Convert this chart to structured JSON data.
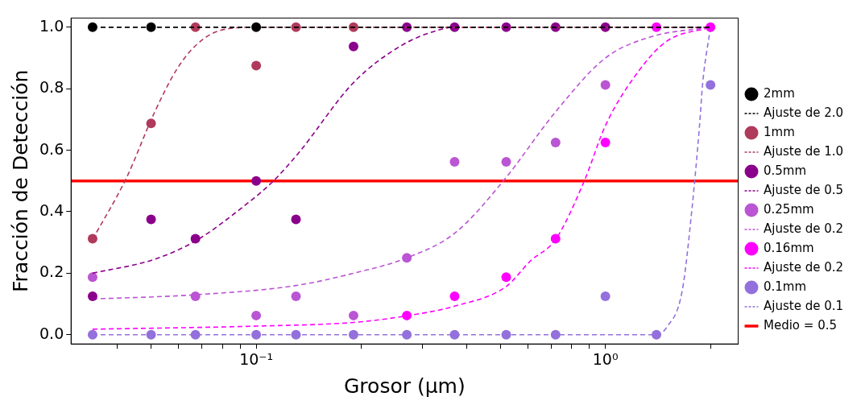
{
  "chart_data": {
    "type": "scatter",
    "xlabel": "Grosor (µm)",
    "ylabel": "Fracción de Detección",
    "log": "x",
    "grid": false,
    "legend": "right",
    "xlim": [
      0.0295,
      2.4
    ],
    "xticks": [
      {
        "value": 0.04,
        "label": null
      },
      {
        "value": 0.05,
        "label": null
      },
      {
        "value": 0.06,
        "label": null
      },
      {
        "value": 0.07,
        "label": null
      },
      {
        "value": 0.08,
        "label": null
      },
      {
        "value": 0.09,
        "label": null
      },
      {
        "value": 0.1,
        "label": "10⁻¹"
      },
      {
        "value": 0.2,
        "label": null
      },
      {
        "value": 0.3,
        "label": null
      },
      {
        "value": 0.4,
        "label": null
      },
      {
        "value": 0.5,
        "label": null
      },
      {
        "value": 0.6,
        "label": null
      },
      {
        "value": 0.7,
        "label": null
      },
      {
        "value": 0.8,
        "label": null
      },
      {
        "value": 0.9,
        "label": null
      },
      {
        "value": 1,
        "label": "10⁰"
      },
      {
        "value": 2,
        "label": null
      }
    ],
    "ylim": [
      -0.03,
      1.03
    ],
    "yticks": [
      {
        "value": 0,
        "label": "0.0"
      },
      {
        "value": 0.2,
        "label": "0.2"
      },
      {
        "value": 0.4,
        "label": "0.4"
      },
      {
        "value": 0.6,
        "label": "0.6"
      },
      {
        "value": 0.8,
        "label": "0.8"
      },
      {
        "value": 1,
        "label": "1.0"
      }
    ],
    "x": [
      0.034,
      0.05,
      0.067,
      0.1,
      0.13,
      0.19,
      0.27,
      0.37,
      0.52,
      0.72,
      1.0,
      1.4,
      2.0
    ],
    "series": [
      {
        "name": "2mm",
        "type": "scatter",
        "marker": "circle",
        "color": "#000000",
        "values": [
          1,
          1,
          null,
          1,
          null,
          null,
          null,
          null,
          null,
          null,
          null,
          null,
          null
        ]
      },
      {
        "name": "Ajuste de 2.0",
        "type": "line",
        "line_style": "dashed",
        "color": "#000000",
        "x": [
          0.034,
          2.0
        ],
        "values": [
          1,
          1
        ]
      },
      {
        "name": "1mm",
        "type": "scatter",
        "marker": "circle",
        "color": "#b03a5b",
        "values": [
          0.3125,
          0.6875,
          1,
          0.875,
          1,
          1,
          null,
          null,
          null,
          null,
          null,
          null,
          null
        ]
      },
      {
        "name": "Ajuste de 1.0",
        "type": "line",
        "line_style": "dashed",
        "color": "#b03a5b",
        "x": [
          0.034,
          0.0425,
          0.051,
          0.059,
          0.067,
          0.079,
          0.1,
          2.0
        ],
        "values": [
          0.31,
          0.51,
          0.72,
          0.86,
          0.94,
          0.99,
          1,
          1
        ]
      },
      {
        "name": "0.5mm",
        "type": "scatter",
        "marker": "circle",
        "color": "#8b008b",
        "values": [
          0.125,
          0.375,
          0.3125,
          0.5,
          0.375,
          0.9375,
          1,
          1,
          1,
          1,
          1,
          null,
          null
        ]
      },
      {
        "name": "Ajuste de 0.5",
        "type": "line",
        "line_style": "dashed",
        "color": "#8b008b",
        "x": [
          0.034,
          0.051,
          0.067,
          0.095,
          0.112,
          0.132,
          0.19,
          0.26,
          0.33,
          0.37,
          2.0
        ],
        "values": [
          0.2,
          0.245,
          0.305,
          0.43,
          0.5,
          0.59,
          0.82,
          0.94,
          0.99,
          1,
          1
        ]
      },
      {
        "name": "0.25mm",
        "type": "scatter",
        "marker": "circle",
        "color": "#ba55d3",
        "values": [
          0.1875,
          null,
          0.125,
          0.0625,
          0.125,
          0.0625,
          0.25,
          0.5625,
          0.5625,
          0.625,
          0.8125,
          null,
          null
        ]
      },
      {
        "name": "Ajuste de 0.2",
        "type": "line",
        "line_style": "dashed",
        "color": "#ba55d3",
        "x": [
          0.034,
          0.067,
          0.13,
          0.19,
          0.27,
          0.37,
          0.51,
          0.72,
          1.0,
          1.36,
          2.0
        ],
        "values": [
          0.116,
          0.13,
          0.16,
          0.2,
          0.25,
          0.33,
          0.5,
          0.725,
          0.9,
          0.97,
          1
        ]
      },
      {
        "name": "0.16mm",
        "type": "scatter",
        "marker": "circle",
        "color": "#ff00ff",
        "values": [
          null,
          null,
          null,
          null,
          null,
          null,
          0.0625,
          0.125,
          0.1875,
          0.3125,
          0.625,
          1,
          1
        ]
      },
      {
        "name": "Ajuste de 0.2",
        "type": "line",
        "line_style": "dashed",
        "color": "#ff00ff",
        "x": [
          0.034,
          0.1,
          0.19,
          0.265,
          0.37,
          0.52,
          0.61,
          0.72,
          0.87,
          1.0,
          1.25,
          1.5,
          2.0
        ],
        "values": [
          0.018,
          0.028,
          0.04,
          0.06,
          0.093,
          0.157,
          0.24,
          0.31,
          0.5,
          0.68,
          0.86,
          0.955,
          1
        ]
      },
      {
        "name": "0.1mm",
        "type": "scatter",
        "marker": "circle",
        "color": "#9370db",
        "values": [
          0,
          0,
          0,
          0,
          0,
          0,
          0,
          0,
          0,
          0,
          0.125,
          0,
          0.8125
        ]
      },
      {
        "name": "Ajuste de 0.1",
        "type": "line",
        "line_style": "dashed",
        "color": "#9370db",
        "x": [
          0.034,
          1.4,
          1.5,
          1.66,
          1.77,
          1.86,
          1.9,
          2.0
        ],
        "values": [
          0,
          0,
          0.025,
          0.144,
          0.41,
          0.68,
          0.82,
          1
        ]
      }
    ],
    "ref_lines": [
      {
        "axis": "y",
        "value": 0.5,
        "label": "Medio = 0.5",
        "color": "#ff0000"
      }
    ]
  }
}
